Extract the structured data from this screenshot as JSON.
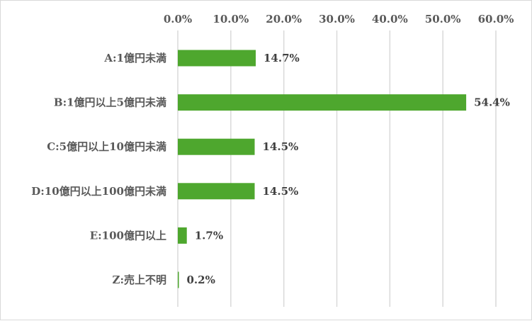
{
  "chart_data": {
    "type": "bar",
    "orientation": "horizontal",
    "categories": [
      "A:1億円未満",
      "B:1億円以上5億円未満",
      "C:5億円以上10億円未満",
      "D:10億円以上100億円未満",
      "E:100億円以上",
      "Z:売上不明"
    ],
    "values": [
      14.7,
      54.4,
      14.5,
      14.5,
      1.7,
      0.2
    ],
    "data_labels": [
      "14.7%",
      "54.4%",
      "14.5%",
      "14.5%",
      "1.7%",
      "0.2%"
    ],
    "xlim": [
      0,
      60
    ],
    "x_ticks": [
      "0.0%",
      "10.0%",
      "20.0%",
      "30.0%",
      "40.0%",
      "50.0%",
      "60.0%"
    ],
    "x_axis_position": "top",
    "grid": true,
    "bar_color": "#4ea72e",
    "title": "",
    "xlabel": "",
    "ylabel": ""
  }
}
